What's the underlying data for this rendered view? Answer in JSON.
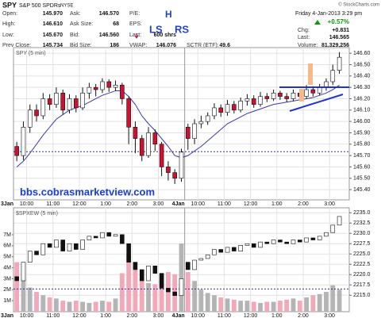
{
  "header": {
    "symbol": "SPY",
    "name": "S&P 500 SPDRs",
    "exchange": "NYSE",
    "credit": "© StockCharts.com",
    "marks": [
      "H",
      "LS",
      "RS"
    ],
    "quote": [
      [
        {
          "label": "Open:",
          "value": "145.970"
        },
        {
          "label": "High:",
          "value": "146.610"
        },
        {
          "label": "Low:",
          "value": "145.670"
        },
        {
          "label": "Prev Close:",
          "value": "145.734"
        }
      ],
      [
        {
          "label": "Ask:",
          "value": "146.570"
        },
        {
          "label": "Ask Size:",
          "value": "68"
        },
        {
          "label": "Bid:",
          "value": "146.560"
        },
        {
          "label": "Bid Size:",
          "value": "186"
        }
      ],
      [
        {
          "label": "P/E:"
        },
        {
          "label": "EPS:"
        },
        {
          "label": "Last:",
          "value": "600 shrs"
        },
        {
          "label": "VWAP:",
          "value": "146.076"
        }
      ]
    ],
    "sctr": {
      "label": "SCTR (ETF):",
      "value": "49.6"
    },
    "datetime": "Friday 4-Jan-2013 3:29 pm",
    "change_pct": "+0.57%",
    "summary": [
      {
        "label": "Chg:",
        "value": "+0.831"
      },
      {
        "label": "Last:",
        "value": "146.565"
      },
      {
        "label": "Volume:",
        "value": "81,329,256"
      }
    ]
  },
  "chart_data": [
    {
      "type": "candlestick",
      "title": "SPY (5 min)",
      "annotation": "bbs.cobrasmarketview.com",
      "up_color": "#ffffff",
      "down_color": "#cc1133",
      "grid": true,
      "ref_line": 145.734,
      "xlim": [
        0,
        12.75
      ],
      "xticks": [
        {
          "value": 0,
          "label": "3Jan"
        },
        {
          "value": 0.5,
          "label": "10:00"
        },
        {
          "value": 1.5,
          "label": "11:00"
        },
        {
          "value": 2.5,
          "label": "12:00"
        },
        {
          "value": 3.5,
          "label": "1:00"
        },
        {
          "value": 4.5,
          "label": "2:00"
        },
        {
          "value": 5.5,
          "label": "3:00"
        },
        {
          "value": 6.5,
          "label": "4Jan"
        },
        {
          "value": 7,
          "label": "10:00"
        },
        {
          "value": 8,
          "label": "11:00"
        },
        {
          "value": 9,
          "label": "12:00"
        },
        {
          "value": 10,
          "label": "1:00"
        },
        {
          "value": 11,
          "label": "2:00"
        },
        {
          "value": 12,
          "label": "3:00"
        }
      ],
      "ylim": [
        145.31,
        146.65
      ],
      "yticks": [
        {
          "value": 145.4,
          "label": "145.40"
        },
        {
          "value": 145.5,
          "label": "145.50"
        },
        {
          "value": 145.6,
          "label": "145.60"
        },
        {
          "value": 145.7,
          "label": "145.70"
        },
        {
          "value": 145.8,
          "label": "145.80"
        },
        {
          "value": 145.9,
          "label": "145.90"
        },
        {
          "value": 146.0,
          "label": "146.00"
        },
        {
          "value": 146.1,
          "label": "146.10"
        },
        {
          "value": 146.2,
          "label": "146.20"
        },
        {
          "value": 146.3,
          "label": "146.30"
        },
        {
          "value": 146.4,
          "label": "146.40"
        },
        {
          "value": 146.5,
          "label": "146.50"
        },
        {
          "value": 146.6,
          "label": "146.60"
        }
      ],
      "x": [
        0.125,
        0.375,
        0.625,
        0.875,
        1.125,
        1.375,
        1.625,
        1.875,
        2.125,
        2.375,
        2.625,
        2.875,
        3.125,
        3.375,
        3.625,
        3.875,
        4.125,
        4.375,
        4.625,
        4.875,
        5.125,
        5.375,
        5.625,
        5.875,
        6.125,
        6.375,
        6.625,
        6.875,
        7.125,
        7.375,
        7.625,
        7.875,
        8.125,
        8.375,
        8.625,
        8.875,
        9.125,
        9.375,
        9.625,
        9.875,
        10.125,
        10.375,
        10.625,
        10.875,
        11.125,
        11.375,
        11.625,
        11.875,
        12.125,
        12.375
      ],
      "open": [
        145.78,
        145.7,
        145.95,
        146.1,
        146.05,
        146.2,
        146.15,
        146.25,
        146.1,
        146.2,
        146.12,
        146.25,
        146.3,
        146.28,
        146.35,
        146.3,
        146.32,
        146.2,
        145.95,
        145.85,
        145.7,
        145.9,
        145.8,
        145.6,
        145.55,
        145.5,
        145.95,
        145.85,
        145.98,
        146.0,
        146.05,
        146.12,
        146.08,
        146.15,
        146.1,
        146.18,
        146.2,
        146.15,
        146.22,
        146.2,
        146.25,
        146.22,
        146.2,
        146.25,
        146.22,
        146.28,
        146.25,
        146.3,
        146.35,
        146.45
      ],
      "high": [
        145.82,
        146.0,
        146.15,
        146.15,
        146.25,
        146.24,
        146.3,
        146.28,
        146.24,
        146.23,
        146.3,
        146.34,
        146.33,
        146.38,
        146.37,
        146.36,
        146.34,
        146.22,
        146.0,
        145.88,
        145.95,
        145.93,
        145.82,
        145.65,
        145.58,
        145.76,
        145.98,
        146.02,
        146.05,
        146.08,
        146.16,
        146.15,
        146.19,
        146.18,
        146.21,
        146.24,
        146.23,
        146.26,
        146.25,
        146.28,
        146.27,
        146.25,
        146.28,
        146.27,
        146.32,
        146.31,
        146.33,
        146.38,
        146.5,
        146.61
      ],
      "low": [
        145.65,
        145.66,
        145.9,
        146.0,
        146.02,
        146.1,
        146.12,
        146.06,
        146.07,
        146.08,
        146.1,
        146.2,
        146.22,
        146.25,
        146.26,
        146.27,
        146.15,
        145.8,
        145.72,
        145.65,
        145.68,
        145.74,
        145.52,
        145.48,
        145.45,
        145.47,
        145.75,
        145.8,
        145.94,
        145.97,
        146.02,
        146.04,
        146.05,
        146.07,
        146.08,
        146.14,
        146.12,
        146.13,
        146.17,
        146.18,
        146.19,
        146.17,
        146.18,
        146.19,
        146.2,
        146.22,
        146.23,
        146.27,
        146.32,
        146.42
      ],
      "close": [
        145.7,
        145.95,
        146.1,
        146.05,
        146.2,
        146.15,
        146.25,
        146.1,
        146.2,
        146.12,
        146.25,
        146.3,
        146.28,
        146.35,
        146.3,
        146.32,
        146.2,
        145.95,
        145.85,
        145.7,
        145.9,
        145.8,
        145.6,
        145.55,
        145.5,
        145.73,
        145.85,
        145.98,
        146.0,
        146.05,
        146.12,
        146.08,
        146.15,
        146.1,
        146.18,
        146.2,
        146.15,
        146.22,
        146.2,
        146.25,
        146.22,
        146.2,
        146.25,
        146.22,
        146.28,
        146.25,
        146.3,
        146.35,
        146.45,
        146.565
      ],
      "overlay": {
        "color": "#3a3aa8",
        "values": [
          145.6,
          145.65,
          145.72,
          145.8,
          145.88,
          145.95,
          146.02,
          146.06,
          146.1,
          146.12,
          146.14,
          146.17,
          146.2,
          146.23,
          146.25,
          146.27,
          146.27,
          146.22,
          146.15,
          146.05,
          145.98,
          145.92,
          145.85,
          145.78,
          145.7,
          145.68,
          145.7,
          145.74,
          145.78,
          145.83,
          145.88,
          145.93,
          145.98,
          146.01,
          146.04,
          146.07,
          146.09,
          146.11,
          146.13,
          146.15,
          146.16,
          146.17,
          146.18,
          146.19,
          146.2,
          146.21,
          146.23,
          146.25,
          146.28,
          146.32
        ]
      }
    },
    {
      "type": "candlestick",
      "title": "$SPXEW (5 min)",
      "up_color": "#ffffff",
      "down_color": "#111111",
      "volume_up_color": "#b4b4b4",
      "volume_down_color": "#f2a8b8",
      "grid": true,
      "ref_line": 2216.5,
      "xlim": [
        0,
        12.75
      ],
      "xticks": [
        {
          "value": 0,
          "label": "3Jan"
        },
        {
          "value": 0.5,
          "label": "10:00"
        },
        {
          "value": 1.5,
          "label": "11:00"
        },
        {
          "value": 2.5,
          "label": "12:00"
        },
        {
          "value": 3.5,
          "label": "1:00"
        },
        {
          "value": 4.5,
          "label": "2:00"
        },
        {
          "value": 5.5,
          "label": "3:00"
        },
        {
          "value": 6.5,
          "label": "4Jan"
        },
        {
          "value": 7,
          "label": "10:00"
        },
        {
          "value": 8,
          "label": "11:00"
        },
        {
          "value": 9,
          "label": "12:00"
        },
        {
          "value": 10,
          "label": "1:00"
        },
        {
          "value": 11,
          "label": "2:00"
        },
        {
          "value": 12,
          "label": "3:00"
        }
      ],
      "ylim": [
        2211,
        2236.2
      ],
      "yticks": [
        {
          "value": 2215,
          "label": "2215.0"
        },
        {
          "value": 2217.5,
          "label": "2217.5"
        },
        {
          "value": 2220,
          "label": "2220.0"
        },
        {
          "value": 2222.5,
          "label": "2222.5"
        },
        {
          "value": 2225,
          "label": "2225.0"
        },
        {
          "value": 2227.5,
          "label": "2227.5"
        },
        {
          "value": 2230,
          "label": "2230.0"
        },
        {
          "value": 2232.5,
          "label": "2232.5"
        },
        {
          "value": 2235,
          "label": "2235.0"
        }
      ],
      "y2lim": [
        0,
        9450000
      ],
      "y2ticks": [
        {
          "value": 1000000,
          "label": "1M"
        },
        {
          "value": 2000000,
          "label": "2M"
        },
        {
          "value": 3000000,
          "label": "3M"
        },
        {
          "value": 4000000,
          "label": "4M"
        },
        {
          "value": 5000000,
          "label": "5M"
        },
        {
          "value": 6000000,
          "label": "6M"
        },
        {
          "value": 7000000,
          "label": "7M"
        }
      ],
      "x": [
        0.125,
        0.375,
        0.625,
        0.875,
        1.125,
        1.375,
        1.625,
        1.875,
        2.125,
        2.375,
        2.625,
        2.875,
        3.125,
        3.375,
        3.625,
        3.875,
        4.125,
        4.375,
        4.625,
        4.875,
        5.125,
        5.375,
        5.625,
        5.875,
        6.125,
        6.375,
        6.625,
        6.875,
        7.125,
        7.375,
        7.625,
        7.875,
        8.125,
        8.375,
        8.625,
        8.875,
        9.125,
        9.375,
        9.625,
        9.875,
        10.125,
        10.375,
        10.625,
        10.875,
        11.125,
        11.375,
        11.625,
        11.875,
        12.125,
        12.375
      ],
      "open": [
        2219.5,
        2218.5,
        2223.0,
        2225.7,
        2224.8,
        2227.5,
        2226.6,
        2228.4,
        2225.7,
        2227.5,
        2226.1,
        2228.4,
        2229.3,
        2228.9,
        2230.2,
        2229.3,
        2229.7,
        2227.5,
        2223.0,
        2221.2,
        2218.5,
        2222.1,
        2220.3,
        2216.7,
        2215.8,
        2214.9,
        2223.0,
        2221.2,
        2223.5,
        2223.9,
        2224.8,
        2226.1,
        2225.4,
        2226.6,
        2225.7,
        2227.1,
        2227.5,
        2226.6,
        2227.9,
        2227.5,
        2228.4,
        2227.9,
        2227.5,
        2228.4,
        2227.9,
        2228.9,
        2228.4,
        2229.3,
        2230.2,
        2232.0
      ],
      "close": [
        2218.5,
        2223.0,
        2225.7,
        2224.8,
        2227.5,
        2226.6,
        2228.4,
        2225.7,
        2227.5,
        2226.1,
        2228.4,
        2229.3,
        2228.9,
        2230.2,
        2229.3,
        2229.7,
        2227.5,
        2223.0,
        2221.2,
        2218.5,
        2222.1,
        2220.3,
        2216.7,
        2215.8,
        2214.9,
        2219.0,
        2221.2,
        2223.5,
        2223.9,
        2224.8,
        2226.1,
        2225.4,
        2226.6,
        2225.7,
        2227.1,
        2227.5,
        2226.6,
        2227.9,
        2227.5,
        2228.4,
        2227.9,
        2227.5,
        2228.4,
        2227.9,
        2228.9,
        2228.4,
        2229.3,
        2230.2,
        2232.0,
        2234.1
      ],
      "volume": [
        4500000,
        3000000,
        2200000,
        1800000,
        1500000,
        1300000,
        1200000,
        1000000,
        900000,
        1000000,
        900000,
        800000,
        900000,
        1000000,
        900000,
        1200000,
        3500000,
        5200000,
        3800000,
        3000000,
        2600000,
        2500000,
        3200000,
        3600000,
        3400000,
        6200000,
        3600000,
        2800000,
        2000000,
        1700000,
        1500000,
        1300000,
        1200000,
        1100000,
        1000000,
        1000000,
        900000,
        800000,
        900000,
        900000,
        1000000,
        1100000,
        1200000,
        1000000,
        1300000,
        1500000,
        1600000,
        1800000,
        2400000,
        2000000
      ]
    }
  ]
}
